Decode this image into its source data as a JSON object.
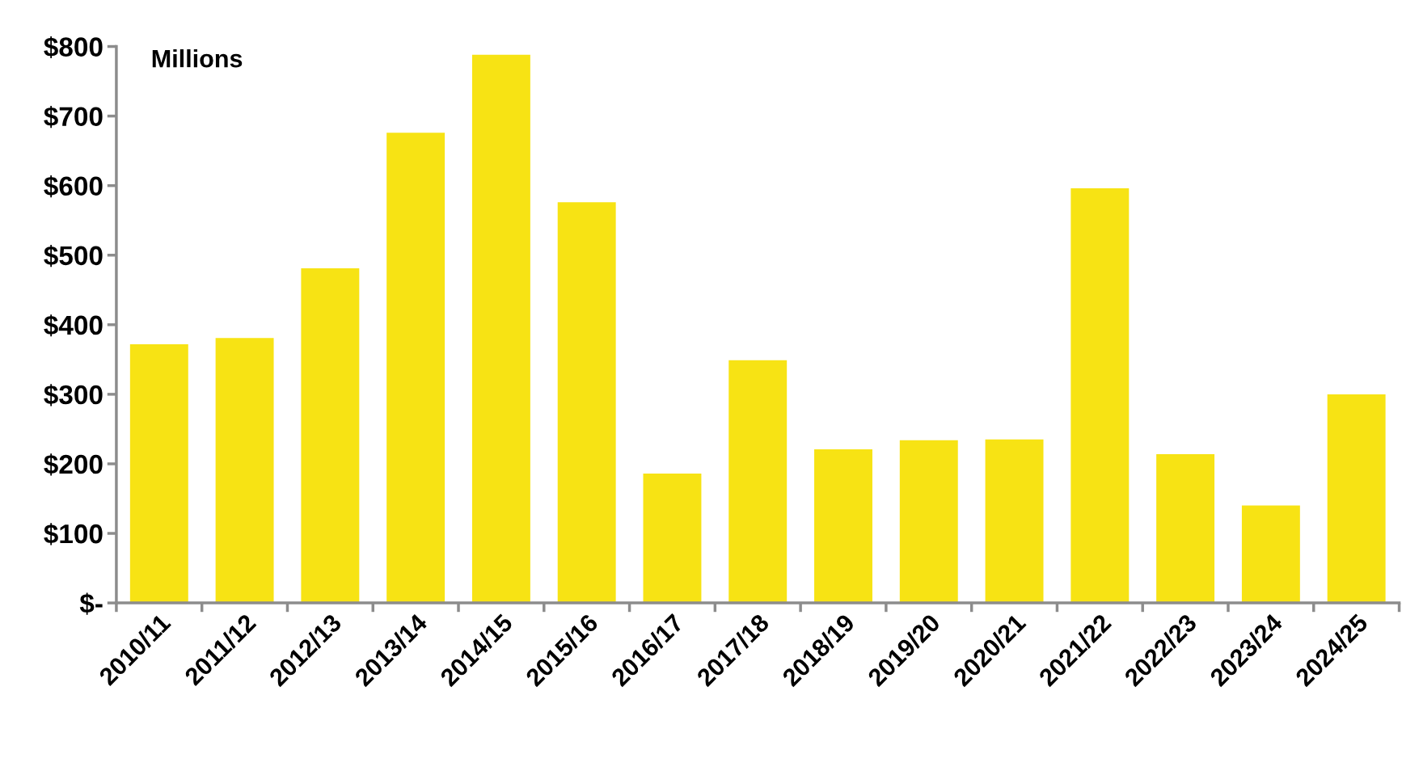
{
  "chart_data": {
    "type": "bar",
    "categories": [
      "2010/11",
      "2011/12",
      "2012/13",
      "2013/14",
      "2014/15",
      "2015/16",
      "2016/17",
      "2017/18",
      "2018/19",
      "2019/20",
      "2020/21",
      "2021/22",
      "2022/23",
      "2023/24",
      "2024/25"
    ],
    "values": [
      372,
      381,
      481,
      676,
      788,
      576,
      186,
      349,
      221,
      234,
      235,
      596,
      214,
      140,
      300
    ],
    "color": "#f7e314",
    "ylim": [
      0,
      800
    ],
    "yticks": [
      {
        "value": 0,
        "label": "$-"
      },
      {
        "value": 100,
        "label": "$100"
      },
      {
        "value": 200,
        "label": "$200"
      },
      {
        "value": 300,
        "label": "$300"
      },
      {
        "value": 400,
        "label": "$400"
      },
      {
        "value": 500,
        "label": "$500"
      },
      {
        "value": 600,
        "label": "$600"
      },
      {
        "value": 700,
        "label": "$700"
      },
      {
        "value": 800,
        "label": "$800"
      }
    ],
    "annotations": [
      "Millions"
    ],
    "grid": false
  }
}
